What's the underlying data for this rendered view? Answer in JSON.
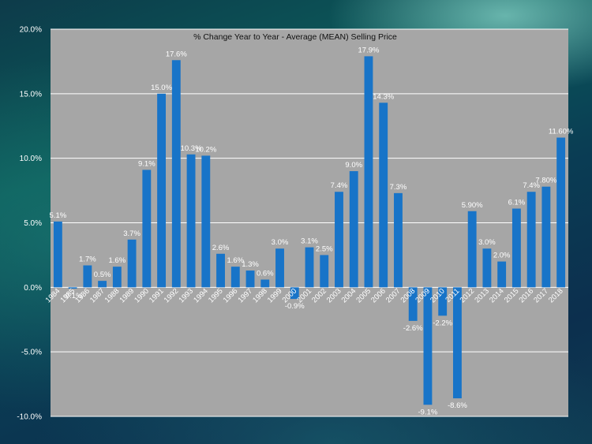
{
  "chart_data": {
    "type": "bar",
    "title": "% Change Year  to Year - Average (MEAN) Selling Price",
    "xlabel": "",
    "ylabel": "",
    "ylim": [
      -10,
      20
    ],
    "yticks": [
      "20.0%",
      "15.0%",
      "10.0%",
      "5.0%",
      "0.0%",
      "-5.0%",
      "-10.0%"
    ],
    "ytick_values": [
      20,
      15,
      10,
      5,
      0,
      -5,
      -10
    ],
    "grid": true,
    "legend": "none",
    "bar_color": "#1874c8",
    "plot_background": "#a6a6a6",
    "categories": [
      "1984",
      "1985",
      "1986",
      "1987",
      "1988",
      "1989",
      "1990",
      "1991",
      "1992",
      "1993",
      "1994",
      "1995",
      "1996",
      "1997",
      "1998",
      "1999",
      "2000",
      "2001",
      "2002",
      "2003",
      "2004",
      "2005",
      "2006",
      "2007",
      "2008",
      "2009",
      "2010",
      "2011",
      "2012",
      "2013",
      "2014",
      "2015",
      "2016",
      "2017",
      "2018"
    ],
    "values": [
      5.1,
      -0.1,
      1.7,
      0.5,
      1.6,
      3.7,
      9.1,
      15.0,
      17.6,
      10.3,
      10.2,
      2.6,
      1.6,
      1.3,
      0.6,
      3.0,
      -0.9,
      3.1,
      2.5,
      7.4,
      9.0,
      17.9,
      14.3,
      7.3,
      -2.6,
      -9.1,
      -2.2,
      -8.6,
      5.9,
      3.0,
      2.0,
      6.1,
      7.4,
      7.8,
      11.6
    ],
    "data_labels": [
      "5.1%",
      "-0.1%",
      "1.7%",
      "0.5%",
      "1.6%",
      "3.7%",
      "9.1%",
      "15.0%",
      "17.6%",
      "10.3%",
      "10.2%",
      "2.6%",
      "1.6%",
      "1.3%",
      "0.6%",
      "3.0%",
      "-0.9%",
      "3.1%",
      "2.5%",
      "7.4%",
      "9.0%",
      "17.9%",
      "14.3%",
      "7.3%",
      "-2.6%",
      "-9.1%",
      "-2.2%",
      "-8.6%",
      "5.90%",
      "3.0%",
      "2.0%",
      "6.1%",
      "7.4%",
      "7.80%",
      "11.60%"
    ]
  }
}
